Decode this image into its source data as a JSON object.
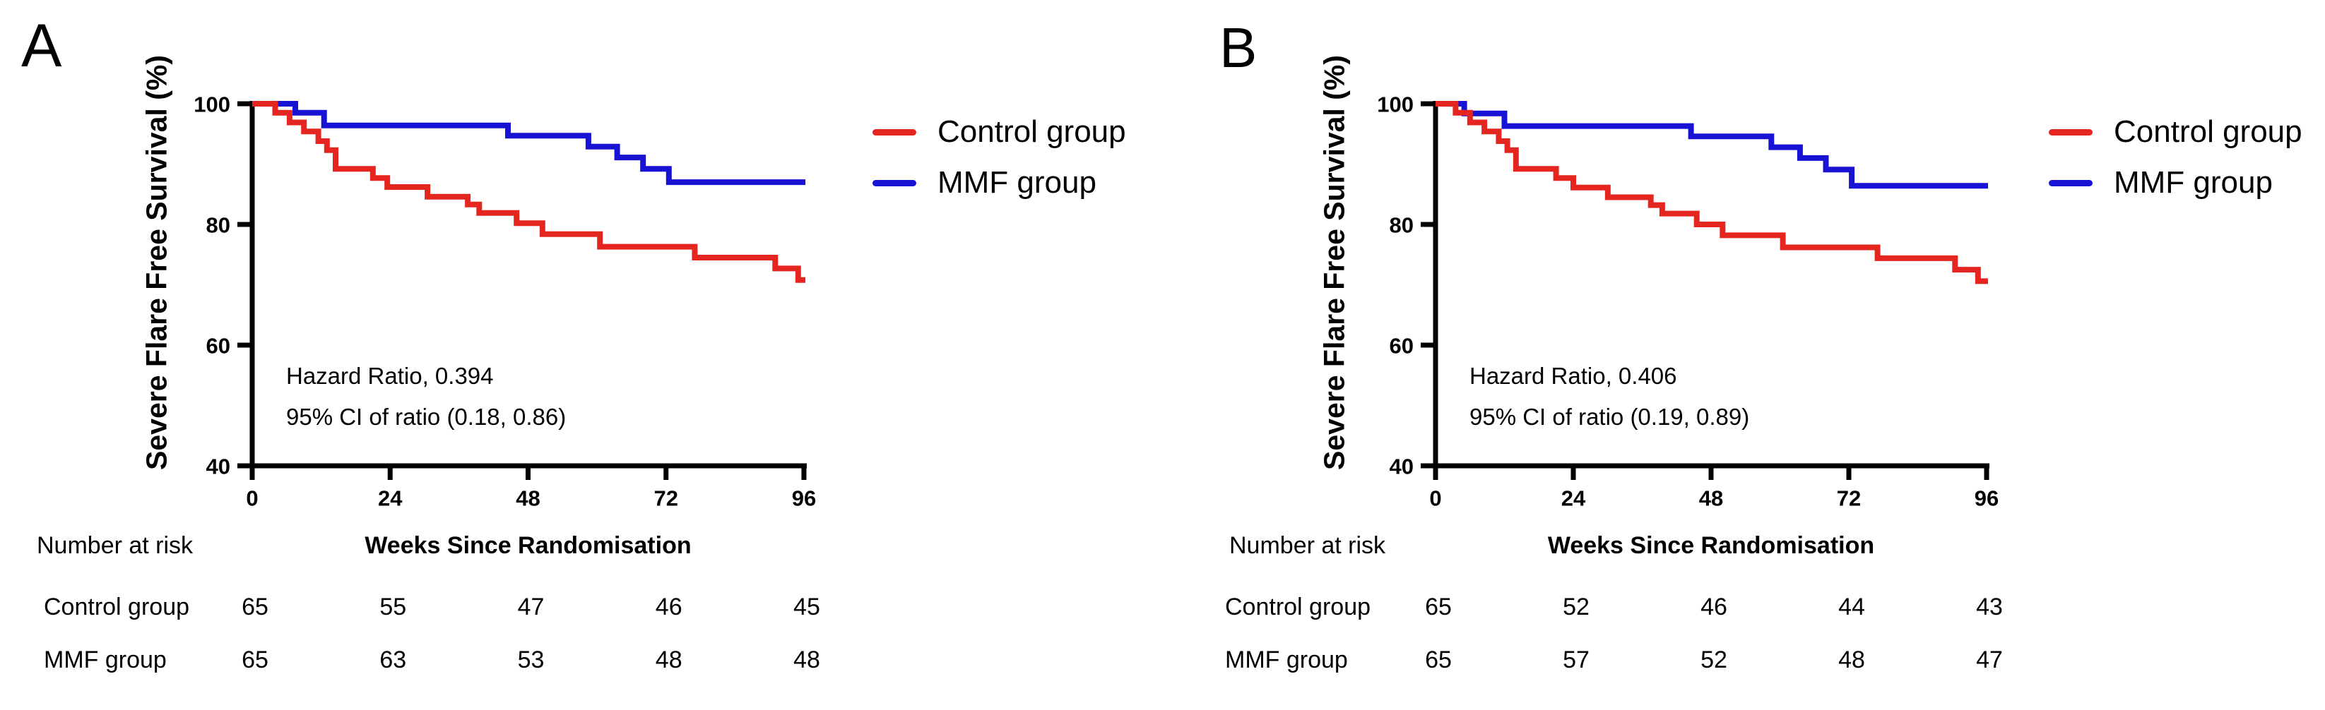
{
  "chart_data": [
    {
      "panel": "A",
      "type": "line",
      "subtype": "kaplan-meier-step",
      "xlabel": "Weeks Since Randomisation",
      "ylabel": "Severe Flare Free Survival (%)",
      "xlim": [
        0,
        96
      ],
      "ylim": [
        40,
        100
      ],
      "x_ticks": [
        0,
        24,
        48,
        72,
        96
      ],
      "y_ticks": [
        100,
        80,
        60,
        40
      ],
      "grid": false,
      "legend_position": "right-of-plot",
      "annotations": [
        "Hazard Ratio, 0.394",
        "95% CI of ratio (0.18, 0.86)"
      ],
      "series": [
        {
          "name": "Control group",
          "color": "#e52620",
          "points": [
            [
              0,
              100
            ],
            [
              4,
              98.5
            ],
            [
              6.5,
              96.9
            ],
            [
              9,
              95.4
            ],
            [
              11.5,
              93.8
            ],
            [
              13,
              92.3
            ],
            [
              14.5,
              89.2
            ],
            [
              21,
              87.7
            ],
            [
              23.5,
              86.2
            ],
            [
              30.5,
              84.6
            ],
            [
              37.5,
              83.3
            ],
            [
              39.5,
              81.9
            ],
            [
              46,
              80.2
            ],
            [
              50.5,
              78.4
            ],
            [
              60.5,
              76.3
            ],
            [
              77,
              74.5
            ],
            [
              91,
              72.7
            ],
            [
              95,
              70.8
            ]
          ]
        },
        {
          "name": "MMF group",
          "color": "#1712d4",
          "points": [
            [
              0,
              100
            ],
            [
              7.5,
              98.5
            ],
            [
              12.5,
              96.4
            ],
            [
              44.5,
              94.7
            ],
            [
              58.5,
              92.9
            ],
            [
              63.5,
              91.1
            ],
            [
              68,
              89.2
            ],
            [
              72.5,
              87.0
            ]
          ]
        }
      ],
      "number_at_risk": {
        "label": "Number at risk",
        "rows": [
          {
            "label": "Control group",
            "values": [
              65,
              55,
              47,
              46,
              45
            ]
          },
          {
            "label": "MMF group",
            "values": [
              65,
              63,
              53,
              48,
              48
            ]
          }
        ]
      }
    },
    {
      "panel": "B",
      "type": "line",
      "subtype": "kaplan-meier-step",
      "xlabel": "Weeks Since Randomisation",
      "ylabel": "Severe Flare Free Survival (%)",
      "xlim": [
        0,
        96
      ],
      "ylim": [
        40,
        100
      ],
      "x_ticks": [
        0,
        24,
        48,
        72,
        96
      ],
      "y_ticks": [
        100,
        80,
        60,
        40
      ],
      "grid": false,
      "legend_position": "right-of-plot",
      "annotations": [
        "Hazard Ratio, 0.406",
        "95% CI of ratio (0.19, 0.89)"
      ],
      "series": [
        {
          "name": "Control group",
          "color": "#e52620",
          "points": [
            [
              0,
              100
            ],
            [
              3.5,
              98.5
            ],
            [
              6,
              96.9
            ],
            [
              8.5,
              95.4
            ],
            [
              11,
              93.8
            ],
            [
              12.5,
              92.3
            ],
            [
              14,
              89.2
            ],
            [
              21,
              87.7
            ],
            [
              24,
              86.1
            ],
            [
              30,
              84.5
            ],
            [
              37.5,
              83.2
            ],
            [
              39.5,
              81.8
            ],
            [
              45.5,
              80.0
            ],
            [
              50,
              78.2
            ],
            [
              60.5,
              76.2
            ],
            [
              77,
              74.4
            ],
            [
              90.5,
              72.5
            ],
            [
              94.5,
              70.6
            ]
          ]
        },
        {
          "name": "MMF group",
          "color": "#1712d4",
          "points": [
            [
              0,
              100
            ],
            [
              5,
              98.4
            ],
            [
              12,
              96.3
            ],
            [
              44.5,
              94.6
            ],
            [
              58.5,
              92.8
            ],
            [
              63.5,
              91.0
            ],
            [
              68,
              89.1
            ],
            [
              72.5,
              86.4
            ]
          ]
        }
      ],
      "number_at_risk": {
        "label": "Number at risk",
        "rows": [
          {
            "label": "Control group",
            "values": [
              65,
              52,
              46,
              44,
              43
            ]
          },
          {
            "label": "MMF group",
            "values": [
              65,
              57,
              52,
              48,
              47
            ]
          }
        ]
      }
    }
  ]
}
